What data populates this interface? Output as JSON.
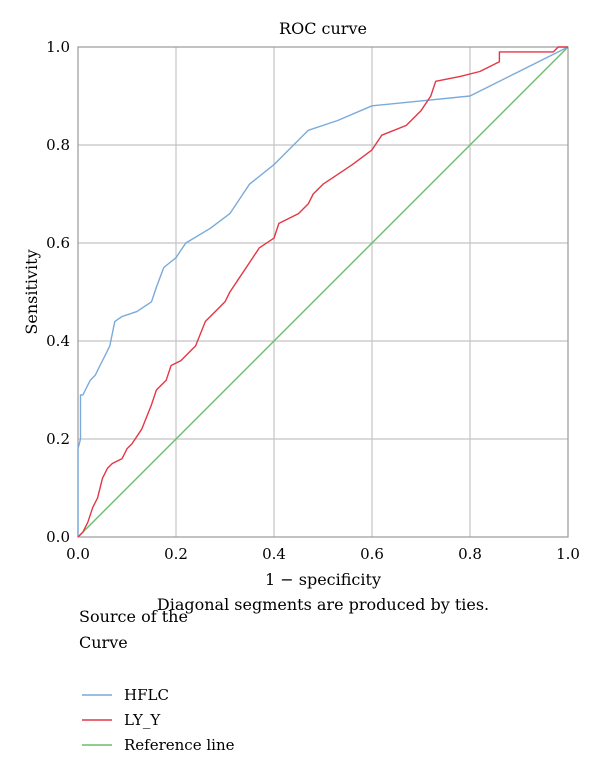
{
  "chart_data": {
    "type": "line",
    "title": "ROC curve",
    "xlabel": "1 − specificity",
    "ylabel": "Sensitivity",
    "note": "Diagonal segments are produced by ties.",
    "xlim": [
      0,
      1
    ],
    "ylim": [
      0,
      1
    ],
    "grid": true,
    "xticks": [
      "0.0",
      "0.2",
      "0.4",
      "0.6",
      "0.8",
      "1.0"
    ],
    "yticks": [
      "0.0",
      "0.2",
      "0.4",
      "0.6",
      "0.8",
      "1.0"
    ],
    "legend": {
      "title_line1": "Source of the",
      "title_line2": "Curve",
      "placement": "bottom-left"
    },
    "series": [
      {
        "name": "HFLC",
        "color": "#7aaadc",
        "points": [
          [
            0,
            0
          ],
          [
            0,
            0.18
          ],
          [
            0.005,
            0.2
          ],
          [
            0.005,
            0.29
          ],
          [
            0.01,
            0.29
          ],
          [
            0.015,
            0.3
          ],
          [
            0.02,
            0.31
          ],
          [
            0.025,
            0.32
          ],
          [
            0.035,
            0.33
          ],
          [
            0.045,
            0.35
          ],
          [
            0.055,
            0.37
          ],
          [
            0.065,
            0.39
          ],
          [
            0.075,
            0.44
          ],
          [
            0.09,
            0.45
          ],
          [
            0.12,
            0.46
          ],
          [
            0.135,
            0.47
          ],
          [
            0.15,
            0.48
          ],
          [
            0.16,
            0.51
          ],
          [
            0.175,
            0.55
          ],
          [
            0.2,
            0.57
          ],
          [
            0.22,
            0.6
          ],
          [
            0.27,
            0.63
          ],
          [
            0.31,
            0.66
          ],
          [
            0.33,
            0.69
          ],
          [
            0.35,
            0.72
          ],
          [
            0.4,
            0.76
          ],
          [
            0.47,
            0.83
          ],
          [
            0.53,
            0.85
          ],
          [
            0.6,
            0.88
          ],
          [
            0.7,
            0.89
          ],
          [
            0.8,
            0.9
          ],
          [
            0.9,
            0.95
          ],
          [
            1,
            1
          ]
        ]
      },
      {
        "name": "LY_Y",
        "color": "#e23845",
        "points": [
          [
            0,
            0
          ],
          [
            0.01,
            0.01
          ],
          [
            0.02,
            0.03
          ],
          [
            0.03,
            0.06
          ],
          [
            0.04,
            0.08
          ],
          [
            0.05,
            0.12
          ],
          [
            0.06,
            0.14
          ],
          [
            0.07,
            0.15
          ],
          [
            0.09,
            0.16
          ],
          [
            0.1,
            0.18
          ],
          [
            0.11,
            0.19
          ],
          [
            0.13,
            0.22
          ],
          [
            0.15,
            0.27
          ],
          [
            0.16,
            0.3
          ],
          [
            0.18,
            0.32
          ],
          [
            0.19,
            0.35
          ],
          [
            0.21,
            0.36
          ],
          [
            0.24,
            0.39
          ],
          [
            0.26,
            0.44
          ],
          [
            0.28,
            0.46
          ],
          [
            0.3,
            0.48
          ],
          [
            0.31,
            0.5
          ],
          [
            0.33,
            0.53
          ],
          [
            0.35,
            0.56
          ],
          [
            0.37,
            0.59
          ],
          [
            0.4,
            0.61
          ],
          [
            0.41,
            0.64
          ],
          [
            0.45,
            0.66
          ],
          [
            0.47,
            0.68
          ],
          [
            0.48,
            0.7
          ],
          [
            0.5,
            0.72
          ],
          [
            0.53,
            0.74
          ],
          [
            0.56,
            0.76
          ],
          [
            0.6,
            0.79
          ],
          [
            0.62,
            0.82
          ],
          [
            0.67,
            0.84
          ],
          [
            0.7,
            0.87
          ],
          [
            0.72,
            0.9
          ],
          [
            0.73,
            0.93
          ],
          [
            0.78,
            0.94
          ],
          [
            0.82,
            0.95
          ],
          [
            0.86,
            0.97
          ],
          [
            0.86,
            0.99
          ],
          [
            0.97,
            0.99
          ],
          [
            0.98,
            1
          ],
          [
            1,
            1
          ]
        ]
      },
      {
        "name": "Reference line",
        "color": "#6cbd6c",
        "points": [
          [
            0,
            0
          ],
          [
            1,
            1
          ]
        ]
      }
    ]
  }
}
